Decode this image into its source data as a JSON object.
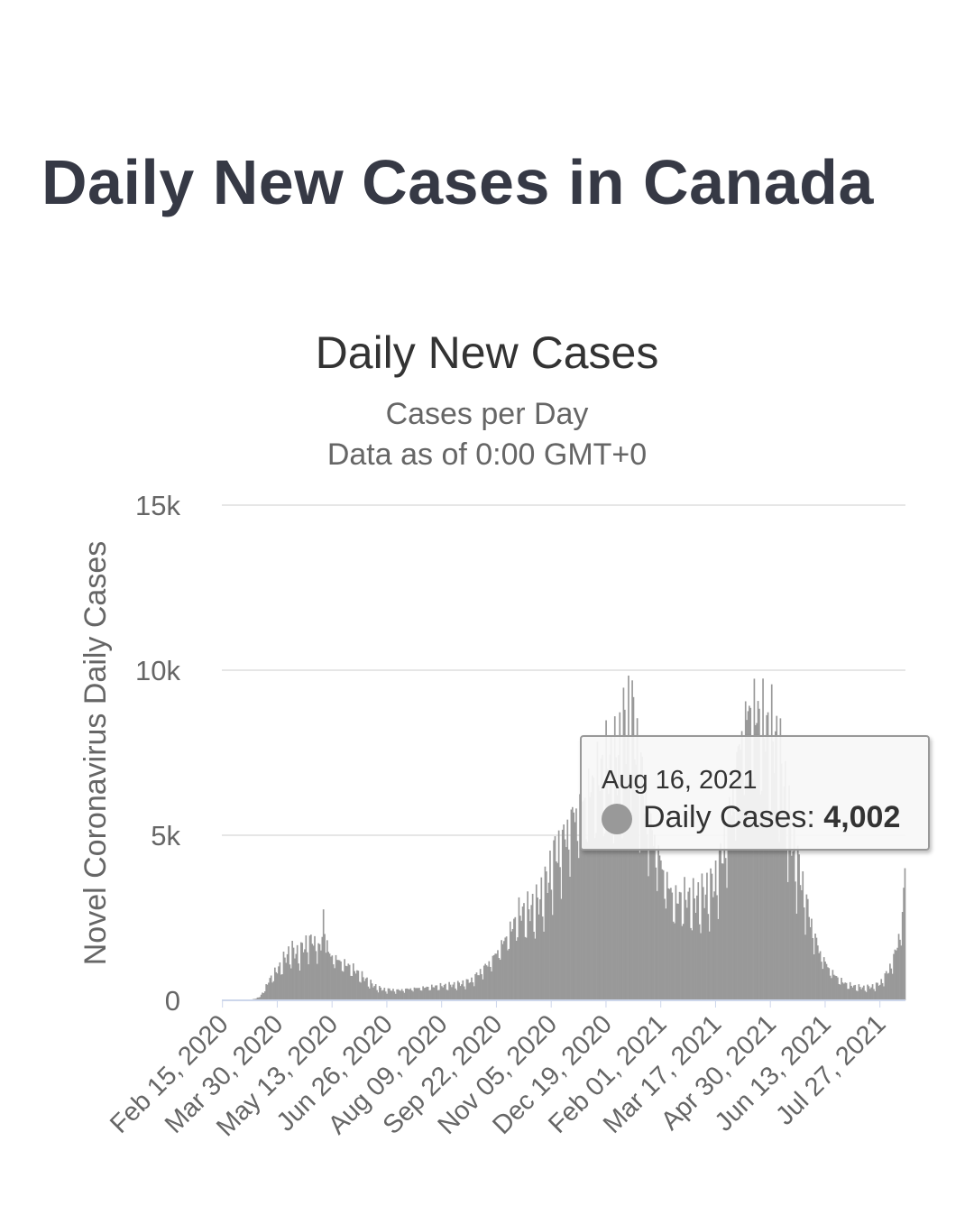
{
  "page": {
    "title": "Daily New Cases in Canada"
  },
  "chart_data": {
    "type": "bar",
    "title": "Daily New Cases",
    "subtitle_lines": [
      "Cases per Day",
      "Data as of 0:00 GMT+0"
    ],
    "ylabel": "Novel Coronavirus Daily Cases",
    "ylim": [
      0,
      15000
    ],
    "yticks": [
      0,
      5000,
      10000,
      15000
    ],
    "ytick_labels": [
      "0",
      "5k",
      "10k",
      "15k"
    ],
    "grid": true,
    "x_start": "2020-02-15",
    "x_end": "2021-08-16",
    "x_tick_labels": [
      "Feb 15, 2020",
      "Mar 30, 2020",
      "May 13, 2020",
      "Jun 26, 2020",
      "Aug 09, 2020",
      "Sep 22, 2020",
      "Nov 05, 2020",
      "Dec 19, 2020",
      "Feb 01, 2021",
      "Mar 17, 2021",
      "Apr 30, 2021",
      "Jun 13, 2021",
      "Jul 27, 2021"
    ],
    "bar_color": "#999999",
    "series": [
      {
        "name": "Daily Cases",
        "points": [
          [
            "2020-02-15",
            0
          ],
          [
            "2020-03-01",
            0
          ],
          [
            "2020-03-10",
            30
          ],
          [
            "2020-03-16",
            100
          ],
          [
            "2020-03-20",
            350
          ],
          [
            "2020-03-25",
            700
          ],
          [
            "2020-03-30",
            900
          ],
          [
            "2020-04-04",
            1200
          ],
          [
            "2020-04-10",
            1500
          ],
          [
            "2020-04-16",
            1400
          ],
          [
            "2020-04-22",
            1700
          ],
          [
            "2020-04-28",
            1800
          ],
          [
            "2020-05-04",
            1500
          ],
          [
            "2020-05-06",
            2600
          ],
          [
            "2020-05-10",
            1400
          ],
          [
            "2020-05-20",
            1150
          ],
          [
            "2020-05-28",
            1000
          ],
          [
            "2020-06-05",
            750
          ],
          [
            "2020-06-15",
            450
          ],
          [
            "2020-06-22",
            330
          ],
          [
            "2020-07-05",
            300
          ],
          [
            "2020-07-15",
            350
          ],
          [
            "2020-07-25",
            380
          ],
          [
            "2020-08-05",
            420
          ],
          [
            "2020-08-15",
            450
          ],
          [
            "2020-08-25",
            500
          ],
          [
            "2020-09-02",
            600
          ],
          [
            "2020-09-10",
            900
          ],
          [
            "2020-09-18",
            1200
          ],
          [
            "2020-09-25",
            1600
          ],
          [
            "2020-10-02",
            2000
          ],
          [
            "2020-10-10",
            2600
          ],
          [
            "2020-10-18",
            2700
          ],
          [
            "2020-10-25",
            2900
          ],
          [
            "2020-11-01",
            3500
          ],
          [
            "2020-11-08",
            4400
          ],
          [
            "2020-11-15",
            4800
          ],
          [
            "2020-11-22",
            5500
          ],
          [
            "2020-11-29",
            5800
          ],
          [
            "2020-12-06",
            6300
          ],
          [
            "2020-12-13",
            6700
          ],
          [
            "2020-12-20",
            7000
          ],
          [
            "2020-12-27",
            7000
          ],
          [
            "2021-01-03",
            8000
          ],
          [
            "2021-01-08",
            8600
          ],
          [
            "2021-01-15",
            7000
          ],
          [
            "2021-01-22",
            5500
          ],
          [
            "2021-01-29",
            4500
          ],
          [
            "2021-02-05",
            3600
          ],
          [
            "2021-02-12",
            3000
          ],
          [
            "2021-02-20",
            3100
          ],
          [
            "2021-02-28",
            3000
          ],
          [
            "2021-03-08",
            3200
          ],
          [
            "2021-03-16",
            3500
          ],
          [
            "2021-03-23",
            4500
          ],
          [
            "2021-03-30",
            6000
          ],
          [
            "2021-04-06",
            7800
          ],
          [
            "2021-04-13",
            8700
          ],
          [
            "2021-04-20",
            8500
          ],
          [
            "2021-04-27",
            8000
          ],
          [
            "2021-05-04",
            7700
          ],
          [
            "2021-05-11",
            6400
          ],
          [
            "2021-05-18",
            4700
          ],
          [
            "2021-05-25",
            3600
          ],
          [
            "2021-06-01",
            2400
          ],
          [
            "2021-06-08",
            1500
          ],
          [
            "2021-06-15",
            1000
          ],
          [
            "2021-06-22",
            700
          ],
          [
            "2021-06-29",
            500
          ],
          [
            "2021-07-06",
            420
          ],
          [
            "2021-07-13",
            380
          ],
          [
            "2021-07-20",
            400
          ],
          [
            "2021-07-27",
            500
          ],
          [
            "2021-08-03",
            900
          ],
          [
            "2021-08-09",
            1500
          ],
          [
            "2021-08-14",
            2500
          ],
          [
            "2021-08-16",
            4002
          ]
        ]
      }
    ],
    "tooltip": {
      "date": "Aug 16, 2021",
      "series": "Daily Cases",
      "value": "4,002"
    }
  }
}
